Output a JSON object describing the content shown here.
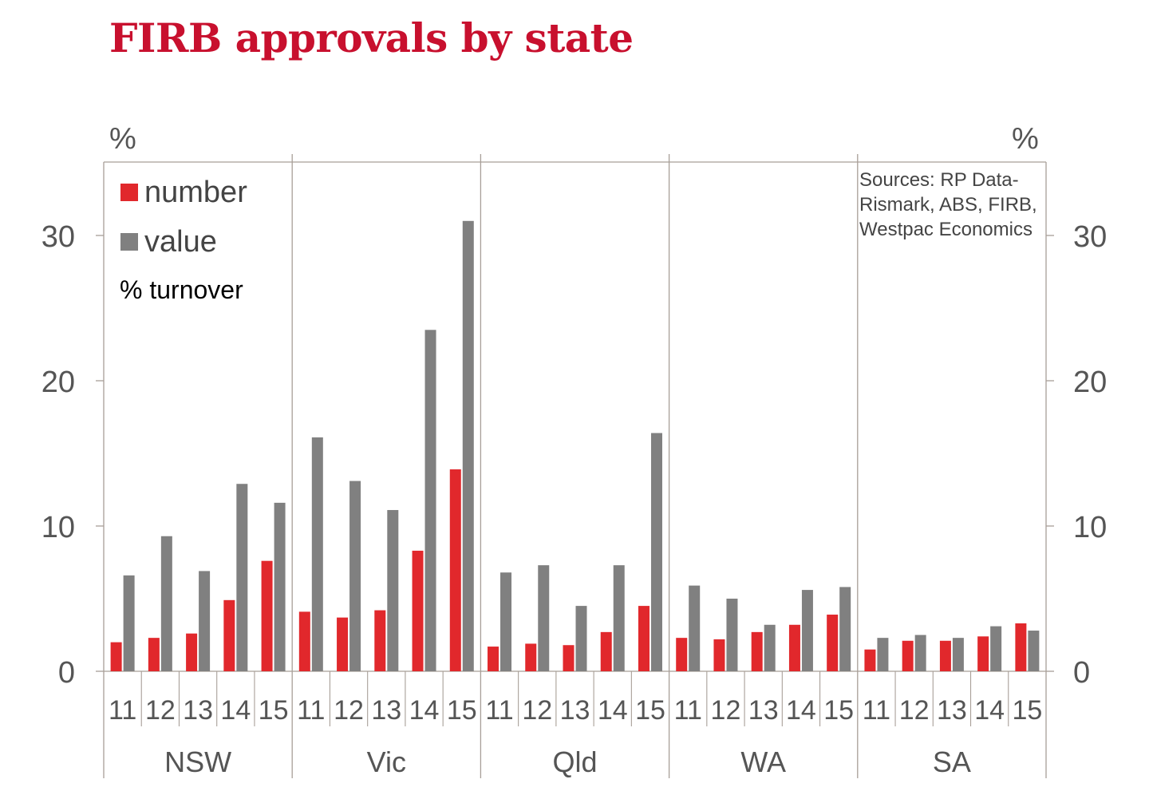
{
  "title": "FIRB approvals by state",
  "colors": {
    "title": "#c8102e",
    "number": "#e1282c",
    "value": "#808080",
    "frame": "#a89f98",
    "text": "#555555"
  },
  "chart_data": {
    "type": "bar",
    "title": "FIRB approvals by state",
    "y_unit_left": "%",
    "y_unit_right": "%",
    "ylim": [
      0,
      35
    ],
    "yticks": [
      0,
      10,
      20,
      30
    ],
    "grid": false,
    "legend_position": "top-left",
    "legend_note": "% turnover",
    "source": [
      "Sources: RP Data-",
      "Rismark, ABS, FIRB,",
      "Westpac Economics"
    ],
    "years": [
      "11",
      "12",
      "13",
      "14",
      "15"
    ],
    "groups": [
      "NSW",
      "Vic",
      "Qld",
      "WA",
      "SA"
    ],
    "series": [
      {
        "name": "number",
        "color": "#e1282c",
        "values": [
          [
            2.0,
            2.3,
            2.6,
            4.9,
            7.6
          ],
          [
            4.1,
            3.7,
            4.2,
            8.3,
            13.9
          ],
          [
            1.7,
            1.9,
            1.8,
            2.7,
            4.5
          ],
          [
            2.3,
            2.2,
            2.7,
            3.2,
            3.9
          ],
          [
            1.5,
            2.1,
            2.1,
            2.4,
            3.3
          ]
        ]
      },
      {
        "name": "value",
        "color": "#808080",
        "values": [
          [
            6.6,
            9.3,
            6.9,
            12.9,
            11.6
          ],
          [
            16.1,
            13.1,
            11.1,
            23.5,
            31.0
          ],
          [
            6.8,
            7.3,
            4.5,
            7.3,
            16.4
          ],
          [
            5.9,
            5.0,
            3.2,
            5.6,
            5.8
          ],
          [
            2.3,
            2.5,
            2.3,
            3.1,
            2.8
          ]
        ]
      }
    ]
  }
}
